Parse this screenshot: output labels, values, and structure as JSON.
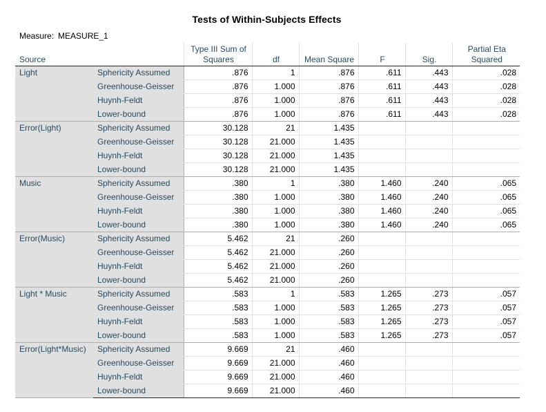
{
  "title": "Tests of Within-Subjects Effects",
  "measure": {
    "label": "Measure:",
    "value": "MEASURE_1"
  },
  "headers": {
    "source": "Source",
    "ss": "Type III Sum of Squares",
    "df": "df",
    "ms": "Mean Square",
    "f": "F",
    "sig": "Sig.",
    "pes": "Partial Eta Squared"
  },
  "groups": [
    {
      "source": "Light",
      "rows": [
        {
          "corr": "Sphericity Assumed",
          "ss": ".876",
          "df": "1",
          "ms": ".876",
          "f": ".611",
          "sig": ".443",
          "pes": ".028"
        },
        {
          "corr": "Greenhouse-Geisser",
          "ss": ".876",
          "df": "1.000",
          "ms": ".876",
          "f": ".611",
          "sig": ".443",
          "pes": ".028"
        },
        {
          "corr": "Huynh-Feldt",
          "ss": ".876",
          "df": "1.000",
          "ms": ".876",
          "f": ".611",
          "sig": ".443",
          "pes": ".028"
        },
        {
          "corr": "Lower-bound",
          "ss": ".876",
          "df": "1.000",
          "ms": ".876",
          "f": ".611",
          "sig": ".443",
          "pes": ".028"
        }
      ]
    },
    {
      "source": "Error(Light)",
      "rows": [
        {
          "corr": "Sphericity Assumed",
          "ss": "30.128",
          "df": "21",
          "ms": "1.435",
          "f": "",
          "sig": "",
          "pes": ""
        },
        {
          "corr": "Greenhouse-Geisser",
          "ss": "30.128",
          "df": "21.000",
          "ms": "1.435",
          "f": "",
          "sig": "",
          "pes": ""
        },
        {
          "corr": "Huynh-Feldt",
          "ss": "30.128",
          "df": "21.000",
          "ms": "1.435",
          "f": "",
          "sig": "",
          "pes": ""
        },
        {
          "corr": "Lower-bound",
          "ss": "30.128",
          "df": "21.000",
          "ms": "1.435",
          "f": "",
          "sig": "",
          "pes": ""
        }
      ]
    },
    {
      "source": "Music",
      "rows": [
        {
          "corr": "Sphericity Assumed",
          "ss": ".380",
          "df": "1",
          "ms": ".380",
          "f": "1.460",
          "sig": ".240",
          "pes": ".065"
        },
        {
          "corr": "Greenhouse-Geisser",
          "ss": ".380",
          "df": "1.000",
          "ms": ".380",
          "f": "1.460",
          "sig": ".240",
          "pes": ".065"
        },
        {
          "corr": "Huynh-Feldt",
          "ss": ".380",
          "df": "1.000",
          "ms": ".380",
          "f": "1.460",
          "sig": ".240",
          "pes": ".065"
        },
        {
          "corr": "Lower-bound",
          "ss": ".380",
          "df": "1.000",
          "ms": ".380",
          "f": "1.460",
          "sig": ".240",
          "pes": ".065"
        }
      ]
    },
    {
      "source": "Error(Music)",
      "rows": [
        {
          "corr": "Sphericity Assumed",
          "ss": "5.462",
          "df": "21",
          "ms": ".260",
          "f": "",
          "sig": "",
          "pes": ""
        },
        {
          "corr": "Greenhouse-Geisser",
          "ss": "5.462",
          "df": "21.000",
          "ms": ".260",
          "f": "",
          "sig": "",
          "pes": ""
        },
        {
          "corr": "Huynh-Feldt",
          "ss": "5.462",
          "df": "21.000",
          "ms": ".260",
          "f": "",
          "sig": "",
          "pes": ""
        },
        {
          "corr": "Lower-bound",
          "ss": "5.462",
          "df": "21.000",
          "ms": ".260",
          "f": "",
          "sig": "",
          "pes": ""
        }
      ]
    },
    {
      "source": "Light * Music",
      "rows": [
        {
          "corr": "Sphericity Assumed",
          "ss": ".583",
          "df": "1",
          "ms": ".583",
          "f": "1.265",
          "sig": ".273",
          "pes": ".057"
        },
        {
          "corr": "Greenhouse-Geisser",
          "ss": ".583",
          "df": "1.000",
          "ms": ".583",
          "f": "1.265",
          "sig": ".273",
          "pes": ".057"
        },
        {
          "corr": "Huynh-Feldt",
          "ss": ".583",
          "df": "1.000",
          "ms": ".583",
          "f": "1.265",
          "sig": ".273",
          "pes": ".057"
        },
        {
          "corr": "Lower-bound",
          "ss": ".583",
          "df": "1.000",
          "ms": ".583",
          "f": "1.265",
          "sig": ".273",
          "pes": ".057"
        }
      ]
    },
    {
      "source": "Error(Light*Music)",
      "rows": [
        {
          "corr": "Sphericity Assumed",
          "ss": "9.669",
          "df": "21",
          "ms": ".460",
          "f": "",
          "sig": "",
          "pes": ""
        },
        {
          "corr": "Greenhouse-Geisser",
          "ss": "9.669",
          "df": "21.000",
          "ms": ".460",
          "f": "",
          "sig": "",
          "pes": ""
        },
        {
          "corr": "Huynh-Feldt",
          "ss": "9.669",
          "df": "21.000",
          "ms": ".460",
          "f": "",
          "sig": "",
          "pes": ""
        },
        {
          "corr": "Lower-bound",
          "ss": "9.669",
          "df": "21.000",
          "ms": ".460",
          "f": "",
          "sig": "",
          "pes": ""
        }
      ]
    }
  ]
}
